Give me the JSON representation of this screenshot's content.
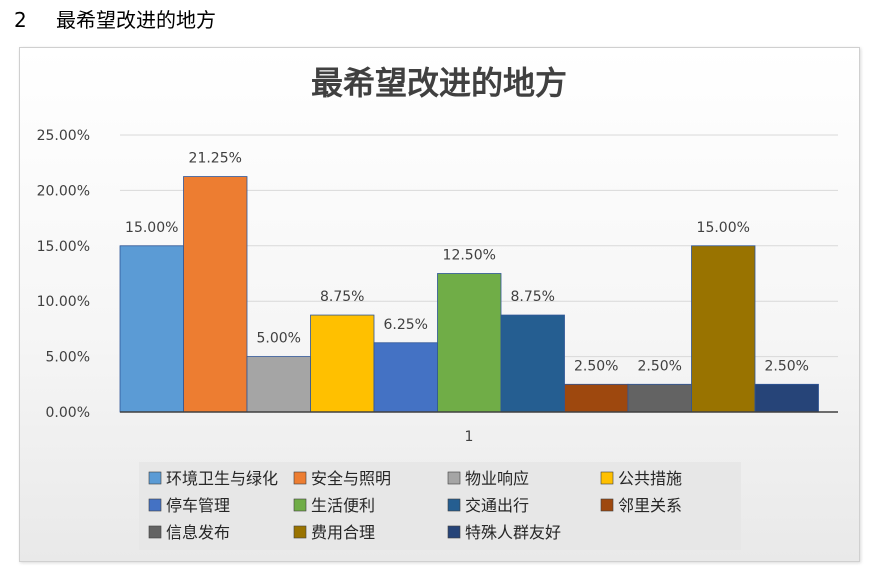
{
  "heading": {
    "number": "2",
    "text": "最希望改进的地方"
  },
  "chart_data": {
    "type": "bar",
    "title": "最希望改进的地方",
    "categories": [
      "1"
    ],
    "ylim": [
      0,
      0.25
    ],
    "yticks": [
      "0.00%",
      "5.00%",
      "10.00%",
      "15.00%",
      "20.00%",
      "25.00%"
    ],
    "grid": true,
    "legend_position": "bottom",
    "series": [
      {
        "name": "环境卫生与绿化",
        "value": 0.15,
        "label": "15.00%",
        "color": "#5b9bd5"
      },
      {
        "name": "安全与照明",
        "value": 0.2125,
        "label": "21.25%",
        "color": "#ed7d31"
      },
      {
        "name": "物业响应",
        "value": 0.05,
        "label": "5.00%",
        "color": "#a5a5a5"
      },
      {
        "name": "公共措施",
        "value": 0.0875,
        "label": "8.75%",
        "color": "#ffc000"
      },
      {
        "name": "停车管理",
        "value": 0.0625,
        "label": "6.25%",
        "color": "#4472c4"
      },
      {
        "name": "生活便利",
        "value": 0.125,
        "label": "12.50%",
        "color": "#70ad47"
      },
      {
        "name": "交通出行",
        "value": 0.0875,
        "label": "8.75%",
        "color": "#255e91"
      },
      {
        "name": "邻里关系",
        "value": 0.025,
        "label": "2.50%",
        "color": "#9e480e"
      },
      {
        "name": "信息发布",
        "value": 0.025,
        "label": "2.50%",
        "color": "#636363"
      },
      {
        "name": "费用合理",
        "value": 0.15,
        "label": "15.00%",
        "color": "#997300"
      },
      {
        "name": "特殊人群友好",
        "value": 0.025,
        "label": "2.50%",
        "color": "#264478"
      }
    ]
  }
}
